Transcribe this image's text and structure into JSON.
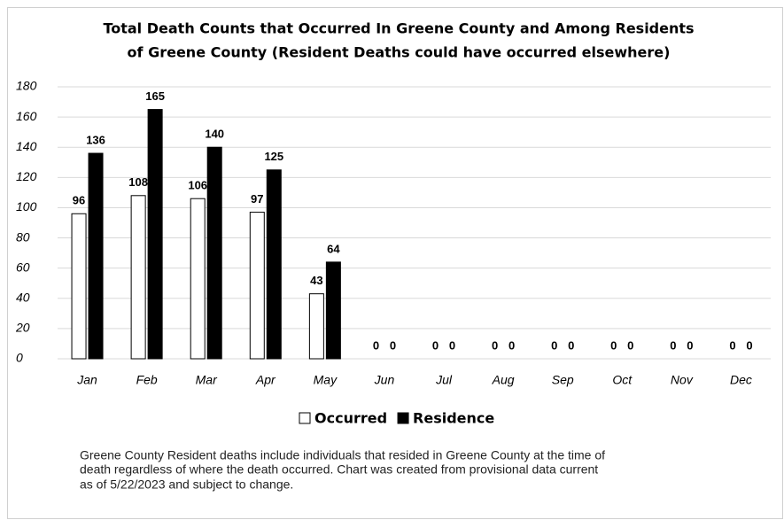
{
  "chart_data": {
    "type": "bar",
    "title": [
      "Total Death Counts that Occurred In Greene County and Among Residents",
      "of Greene County (Resident Deaths could have occurred elsewhere)"
    ],
    "categories": [
      "Jan",
      "Feb",
      "Mar",
      "Apr",
      "May",
      "Jun",
      "Jul",
      "Aug",
      "Sep",
      "Oct",
      "Nov",
      "Dec"
    ],
    "series": [
      {
        "name": "Occurred",
        "color": "#ffffff",
        "values": [
          96,
          108,
          106,
          97,
          43,
          0,
          0,
          0,
          0,
          0,
          0,
          0
        ]
      },
      {
        "name": "Residence",
        "color": "#000000",
        "values": [
          136,
          165,
          140,
          125,
          64,
          0,
          0,
          0,
          0,
          0,
          0,
          0
        ]
      }
    ],
    "ylim": [
      0,
      180
    ],
    "yticks": [
      0,
      20,
      40,
      60,
      80,
      100,
      120,
      140,
      160,
      180
    ],
    "grid": true,
    "legend": "bottom",
    "caption": [
      "Greene County Resident deaths include individuals that resided in Greene County at the time of",
      "death regardless of where the death occurred. Chart was created from provisional data current",
      "as of 5/22/2023 and subject to change."
    ]
  }
}
